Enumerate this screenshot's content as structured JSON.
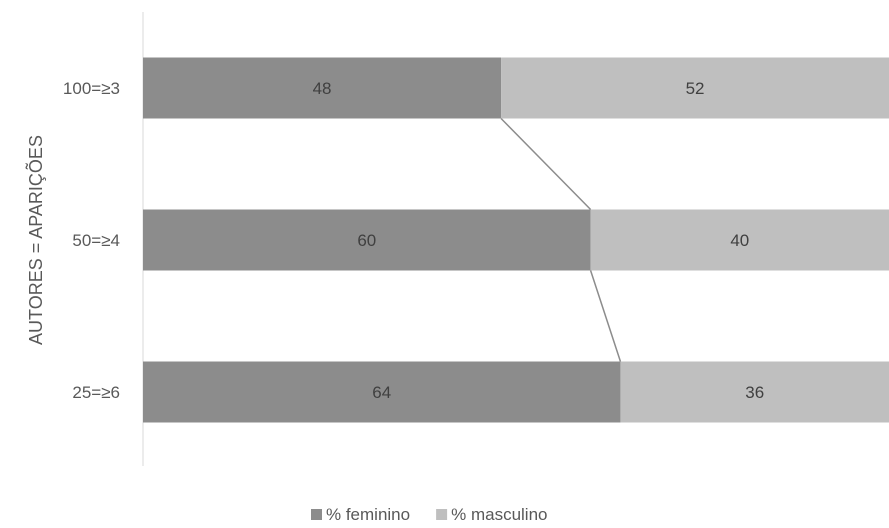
{
  "chart_data": {
    "type": "bar",
    "orientation": "horizontal",
    "stacked": "percent",
    "categories": [
      "100=≥3",
      "50=≥4",
      "25=≥6"
    ],
    "series": [
      {
        "name": "% feminino",
        "values": [
          48,
          60,
          64
        ],
        "color": "#8c8c8c"
      },
      {
        "name": "% masculino",
        "values": [
          52,
          40,
          36
        ],
        "color": "#bfbfbf"
      }
    ],
    "ylabel": "AUTORES = APARIÇÕES",
    "xlim": [
      0,
      100
    ],
    "series_lines": true,
    "legend_position": "bottom",
    "grid": false
  }
}
